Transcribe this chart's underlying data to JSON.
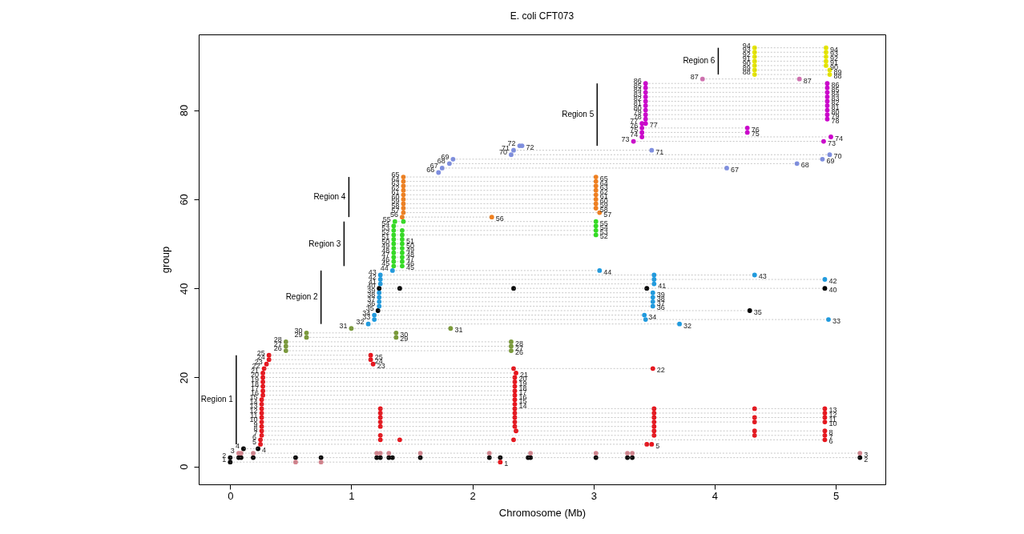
{
  "chart_data": {
    "type": "scatter",
    "title": "E. coli CFT073",
    "xlabel": "Chromosome (Mb)",
    "ylabel": "group",
    "marker": "circle",
    "xlim": [
      -0.26,
      5.41
    ],
    "ylim": [
      -4,
      97
    ],
    "xticks": [
      0,
      1,
      2,
      3,
      4,
      5
    ],
    "yticks": [
      0,
      20,
      40,
      60,
      80
    ],
    "series": [
      {
        "color": "#000000",
        "x": [
          0.0,
          0.0,
          0.07,
          0.09,
          0.19,
          0.54,
          0.75,
          1.21,
          1.24,
          1.31,
          1.34,
          1.57,
          2.14,
          2.23,
          2.46,
          2.48,
          3.02,
          3.28,
          3.32,
          5.2,
          0.11,
          0.23,
          1.22,
          4.29,
          1.23,
          1.4,
          2.34,
          3.44,
          4.91
        ],
        "values": [
          1,
          2,
          2,
          2,
          2,
          2,
          2,
          2,
          2,
          2,
          2,
          2,
          2,
          2,
          2,
          2,
          2,
          2,
          2,
          2,
          4,
          4,
          35,
          35,
          40,
          40,
          40,
          40,
          40
        ],
        "value_labels": [
          "1",
          "2",
          null,
          null,
          null,
          null,
          null,
          null,
          null,
          null,
          null,
          null,
          null,
          null,
          null,
          null,
          null,
          null,
          null,
          "2",
          "4",
          "4",
          "35",
          "35",
          "40",
          null,
          null,
          null,
          "40"
        ]
      },
      {
        "color": "#d4848e",
        "x": [
          0.54,
          0.75,
          0.07,
          0.09,
          0.19,
          1.21,
          1.24,
          1.31,
          1.57,
          2.14,
          2.48,
          3.02,
          3.28,
          3.32,
          5.2
        ],
        "values": [
          1,
          1,
          3,
          3,
          3,
          3,
          3,
          3,
          3,
          3,
          3,
          3,
          3,
          3,
          3
        ],
        "value_labels": [
          null,
          null,
          "3",
          null,
          null,
          null,
          null,
          null,
          null,
          null,
          null,
          null,
          null,
          null,
          "3"
        ]
      },
      {
        "color": "#e8141c",
        "x": [
          2.23,
          0.25,
          3.44,
          3.48,
          0.25,
          1.24,
          1.4,
          2.34,
          4.91,
          0.26,
          1.24,
          3.5,
          4.33,
          4.91,
          0.26,
          2.36,
          3.5,
          4.33,
          4.91,
          0.26,
          1.24,
          2.35,
          3.5,
          0.26,
          1.24,
          2.35,
          3.5,
          4.33,
          4.91,
          0.26,
          1.24,
          2.35,
          3.5,
          4.33,
          4.91,
          0.26,
          1.24,
          2.35,
          3.5,
          4.91,
          0.26,
          1.24,
          2.35,
          3.5,
          4.33,
          4.91,
          0.26,
          2.35,
          0.26,
          2.35,
          0.27,
          2.35,
          0.27,
          2.35,
          0.27,
          2.35,
          0.27,
          2.35,
          0.27,
          2.35,
          0.27,
          2.36,
          0.28,
          2.34,
          3.49,
          0.3,
          1.18,
          0.32,
          1.16,
          0.32,
          1.16
        ],
        "values": [
          1,
          5,
          5,
          5,
          6,
          6,
          6,
          6,
          6,
          7,
          7,
          7,
          7,
          7,
          8,
          8,
          8,
          8,
          8,
          9,
          9,
          9,
          9,
          10,
          10,
          10,
          10,
          10,
          10,
          11,
          11,
          11,
          11,
          11,
          11,
          12,
          12,
          12,
          12,
          12,
          13,
          13,
          13,
          13,
          13,
          13,
          14,
          14,
          15,
          15,
          16,
          16,
          17,
          17,
          18,
          18,
          19,
          19,
          20,
          20,
          21,
          21,
          22,
          22,
          22,
          23,
          23,
          24,
          24,
          25,
          25
        ],
        "value_labels": [
          "1",
          "5",
          null,
          "5",
          "6",
          null,
          null,
          null,
          "6",
          "7",
          null,
          null,
          null,
          "7",
          "8",
          null,
          null,
          null,
          "8",
          "9",
          null,
          null,
          null,
          "10",
          null,
          null,
          null,
          null,
          "10",
          "11",
          null,
          null,
          null,
          null,
          "11",
          "12",
          null,
          null,
          null,
          "12",
          "13",
          null,
          null,
          null,
          null,
          "13",
          "14",
          "14",
          "15",
          "15",
          "16",
          "16",
          "17",
          "17",
          "18",
          "18",
          "19",
          "19",
          "20",
          "20",
          "21",
          "21",
          "22",
          null,
          "22",
          "23",
          "23",
          "24",
          "24",
          "25",
          "25"
        ]
      },
      {
        "color": "#7a9a3a",
        "x": [
          0.46,
          2.32,
          0.46,
          2.32,
          0.46,
          2.32,
          0.63,
          1.37,
          0.63,
          1.37,
          1.0,
          1.82
        ],
        "values": [
          26,
          26,
          27,
          27,
          28,
          28,
          29,
          29,
          30,
          30,
          31,
          31
        ],
        "value_labels": [
          "26",
          "26",
          "27",
          "27",
          "28",
          "28",
          "29",
          "29",
          "30",
          "30",
          "31",
          "31"
        ]
      },
      {
        "color": "#1e9be0",
        "x": [
          1.14,
          3.71,
          1.19,
          3.43,
          4.94,
          1.19,
          3.42,
          1.23,
          3.49,
          1.23,
          3.49,
          1.23,
          3.49,
          1.23,
          3.49,
          1.24,
          3.5,
          1.24,
          3.5,
          4.91,
          1.24,
          3.5,
          4.33,
          1.34,
          3.05
        ],
        "values": [
          32,
          32,
          33,
          33,
          33,
          34,
          34,
          36,
          36,
          37,
          37,
          38,
          38,
          39,
          39,
          41,
          41,
          42,
          42,
          42,
          43,
          43,
          43,
          44,
          44
        ],
        "value_labels": [
          "32",
          "32",
          "33",
          null,
          "33",
          "34",
          "34",
          "36",
          "36",
          "37",
          "37",
          "38",
          "38",
          "39",
          "39",
          "41",
          "41",
          "42",
          null,
          "42",
          "43",
          null,
          "43",
          "44",
          "44"
        ]
      },
      {
        "color": "#33dd22",
        "x": [
          1.35,
          1.42,
          1.35,
          1.42,
          1.35,
          1.42,
          1.35,
          1.42,
          1.35,
          1.42,
          1.35,
          1.42,
          1.35,
          1.42,
          1.35,
          1.42,
          3.02,
          1.35,
          1.42,
          3.02,
          1.35,
          3.02,
          1.36,
          1.43,
          3.02
        ],
        "values": [
          45,
          45,
          46,
          46,
          47,
          47,
          48,
          48,
          49,
          49,
          50,
          50,
          51,
          51,
          52,
          52,
          52,
          53,
          53,
          53,
          54,
          54,
          55,
          55,
          55
        ],
        "value_labels": [
          "45",
          "45",
          "46",
          "46",
          "47",
          "47",
          "48",
          "48",
          "49",
          "49",
          "50",
          "50",
          "51",
          "51",
          "52",
          null,
          "52",
          "53",
          null,
          "53",
          "54",
          "54",
          "55",
          null,
          "55"
        ]
      },
      {
        "color": "#f08020",
        "x": [
          1.42,
          2.16,
          1.43,
          3.05,
          1.43,
          3.02,
          1.43,
          3.02,
          1.43,
          3.02,
          1.43,
          3.02,
          1.43,
          3.02,
          1.43,
          3.02,
          1.43,
          3.02,
          1.43,
          3.02
        ],
        "values": [
          56,
          56,
          57,
          57,
          58,
          58,
          59,
          59,
          60,
          60,
          61,
          61,
          62,
          62,
          63,
          63,
          64,
          64,
          65,
          65
        ],
        "value_labels": [
          "56",
          "56",
          "57",
          "57",
          "58",
          "58",
          "59",
          "59",
          "60",
          "60",
          "61",
          "61",
          "62",
          "62",
          "63",
          "63",
          "64",
          "64",
          "65",
          "65"
        ]
      },
      {
        "color": "#7f8fe0",
        "x": [
          1.72,
          1.75,
          4.1,
          1.81,
          4.68,
          1.84,
          4.89,
          2.32,
          4.95,
          2.34,
          3.48,
          2.39,
          2.41
        ],
        "values": [
          66,
          67,
          67,
          68,
          68,
          69,
          69,
          70,
          70,
          71,
          71,
          72,
          72
        ],
        "value_labels": [
          "66",
          "67",
          "67",
          "68",
          "68",
          "69",
          "69",
          "70",
          "70",
          "71",
          "71",
          "72",
          "72"
        ]
      },
      {
        "color": "#cc00cc",
        "x": [
          3.33,
          4.9,
          3.4,
          4.96,
          3.4,
          4.27,
          3.4,
          4.27,
          3.4,
          3.43,
          3.43,
          4.93,
          3.43,
          4.93,
          3.43,
          4.93,
          3.43,
          4.93,
          3.43,
          4.93,
          3.43,
          4.93,
          3.43,
          4.93,
          3.43,
          4.93,
          3.43,
          4.93
        ],
        "values": [
          73,
          73,
          74,
          74,
          75,
          75,
          76,
          76,
          77,
          77,
          78,
          78,
          79,
          79,
          80,
          80,
          81,
          81,
          82,
          82,
          83,
          83,
          84,
          84,
          85,
          85,
          86,
          86
        ],
        "value_labels": [
          "73",
          "73",
          "74",
          "74",
          "75",
          "75",
          "76",
          "76",
          "77",
          "77",
          "78",
          "78",
          "79",
          "79",
          "80",
          "80",
          "81",
          "81",
          "82",
          "82",
          "83",
          "83",
          "84",
          "84",
          "85",
          "85",
          "86",
          "86"
        ]
      },
      {
        "color": "#d070b0",
        "x": [
          3.9,
          4.7
        ],
        "values": [
          87,
          87
        ],
        "value_labels": [
          "87",
          "87"
        ]
      },
      {
        "color": "#e6e600",
        "x": [
          4.33,
          4.95,
          4.33,
          4.95,
          4.33,
          4.92,
          4.33,
          4.92,
          4.33,
          4.92,
          4.33,
          4.92,
          4.33,
          4.92
        ],
        "values": [
          88,
          88,
          89,
          89,
          90,
          90,
          91,
          91,
          92,
          92,
          93,
          93,
          94,
          94
        ],
        "value_labels": [
          "88",
          "88",
          "89",
          "89",
          "90",
          "90",
          "91",
          "91",
          "92",
          "92",
          "93",
          "93",
          "94",
          "94"
        ]
      },
      {
        "type": "line",
        "marker": "none",
        "color": "#000000",
        "x": [
          0.05,
          0.05
        ],
        "values": [
          5,
          25
        ]
      },
      {
        "type": "line",
        "marker": "none",
        "color": "#000000",
        "x": [
          0.75,
          0.75
        ],
        "values": [
          32,
          44
        ]
      },
      {
        "type": "line",
        "marker": "none",
        "color": "#000000",
        "x": [
          0.94,
          0.94
        ],
        "values": [
          45,
          55
        ]
      },
      {
        "type": "line",
        "marker": "none",
        "color": "#000000",
        "x": [
          0.98,
          0.98
        ],
        "values": [
          56,
          65
        ]
      },
      {
        "type": "line",
        "marker": "none",
        "color": "#000000",
        "x": [
          3.03,
          3.03
        ],
        "values": [
          72,
          86
        ]
      },
      {
        "type": "line",
        "marker": "none",
        "color": "#000000",
        "x": [
          4.03,
          4.03
        ],
        "values": [
          88,
          94
        ]
      }
    ],
    "annotations": [
      "Region 1",
      "Region 2",
      "Region 3",
      "Region 4",
      "Region 5",
      "Region 6"
    ]
  }
}
